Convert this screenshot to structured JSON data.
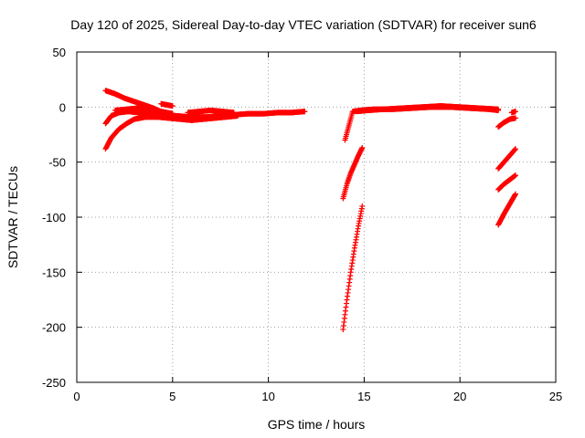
{
  "chart_data": {
    "type": "scatter",
    "title": "Day 120 of 2025, Sidereal Day-to-day VTEC variation (SDTVAR) for receiver sun6",
    "xlabel": "GPS time / hours",
    "ylabel": "SDTVAR / TECUs",
    "xlim": [
      0,
      25
    ],
    "ylim": [
      -250,
      50
    ],
    "x_ticks": [
      "0",
      "5",
      "10",
      "15",
      "20",
      "25"
    ],
    "y_ticks": [
      "50",
      "0",
      "-50",
      "-100",
      "-150",
      "-200",
      "-250"
    ],
    "grid": true,
    "marker": "plus",
    "color": "#ff0000",
    "series": [
      {
        "x": [
          1.5,
          2.0,
          2.5,
          3.0,
          3.5,
          4.0,
          4.5
        ],
        "y": [
          15,
          12,
          8,
          5,
          2,
          -1,
          -5
        ]
      },
      {
        "x": [
          1.5,
          1.8,
          2.2,
          2.7,
          3.2,
          3.8,
          4.5,
          5.2,
          6.0,
          6.8,
          7.5,
          8.2,
          9.0,
          9.8,
          10.5,
          11.2,
          11.9
        ],
        "y": [
          -15,
          -8,
          -5,
          -4,
          -5,
          -6,
          -7,
          -8,
          -9,
          -9,
          -8,
          -7,
          -6,
          -6,
          -5,
          -5,
          -4
        ]
      },
      {
        "x": [
          1.5,
          1.8,
          2.2,
          2.6,
          3.0,
          3.6,
          4.2,
          4.8,
          5.4,
          6.0,
          6.6,
          7.2,
          7.8,
          8.4
        ],
        "y": [
          -38,
          -28,
          -20,
          -15,
          -11,
          -9,
          -9,
          -10,
          -11,
          -12,
          -11,
          -10,
          -9,
          -8
        ]
      },
      {
        "x": [
          2.0,
          2.6,
          3.2,
          3.8,
          4.4,
          5.0
        ],
        "y": [
          -3,
          -2,
          -1,
          -2,
          -4,
          -6
        ]
      },
      {
        "x": [
          4.4,
          4.7,
          5.0
        ],
        "y": [
          3,
          2,
          1
        ]
      },
      {
        "x": [
          5.8,
          6.4,
          7.0,
          7.6,
          8.2
        ],
        "y": [
          -5,
          -4,
          -3,
          -4,
          -5
        ]
      },
      {
        "x": [
          14.0,
          14.4,
          14.8,
          15.5,
          16.5,
          17.5,
          18.5,
          19.5,
          20.5,
          21.5,
          22.0
        ],
        "y": [
          -30,
          -4,
          -3,
          -2,
          -2,
          -1,
          0,
          0,
          -1,
          -2,
          -3
        ]
      },
      {
        "x": [
          14.6,
          15.2,
          16.0,
          17.0,
          18.0,
          19.0,
          20.0,
          21.0,
          22.0
        ],
        "y": [
          -4,
          -3,
          -2,
          -1,
          0,
          1,
          0,
          -1,
          -2
        ]
      },
      {
        "x": [
          13.9,
          14.1,
          14.3,
          14.5,
          14.7,
          14.9
        ],
        "y": [
          -83,
          -70,
          -60,
          -52,
          -44,
          -37
        ]
      },
      {
        "x": [
          13.9,
          14.1,
          14.3,
          14.5,
          14.7,
          14.9
        ],
        "y": [
          -202,
          -175,
          -150,
          -128,
          -108,
          -90
        ]
      },
      {
        "x": [
          22.0,
          22.3,
          22.6,
          22.9
        ],
        "y": [
          -18,
          -14,
          -11,
          -10
        ]
      },
      {
        "x": [
          22.0,
          22.3,
          22.6,
          22.9
        ],
        "y": [
          -56,
          -50,
          -44,
          -38
        ]
      },
      {
        "x": [
          22.0,
          22.3,
          22.6,
          22.9
        ],
        "y": [
          -75,
          -70,
          -66,
          -62
        ]
      },
      {
        "x": [
          22.0,
          22.3,
          22.6,
          22.9
        ],
        "y": [
          -107,
          -97,
          -88,
          -79
        ]
      },
      {
        "x": [
          22.7,
          22.9
        ],
        "y": [
          -5,
          -4
        ]
      }
    ]
  }
}
